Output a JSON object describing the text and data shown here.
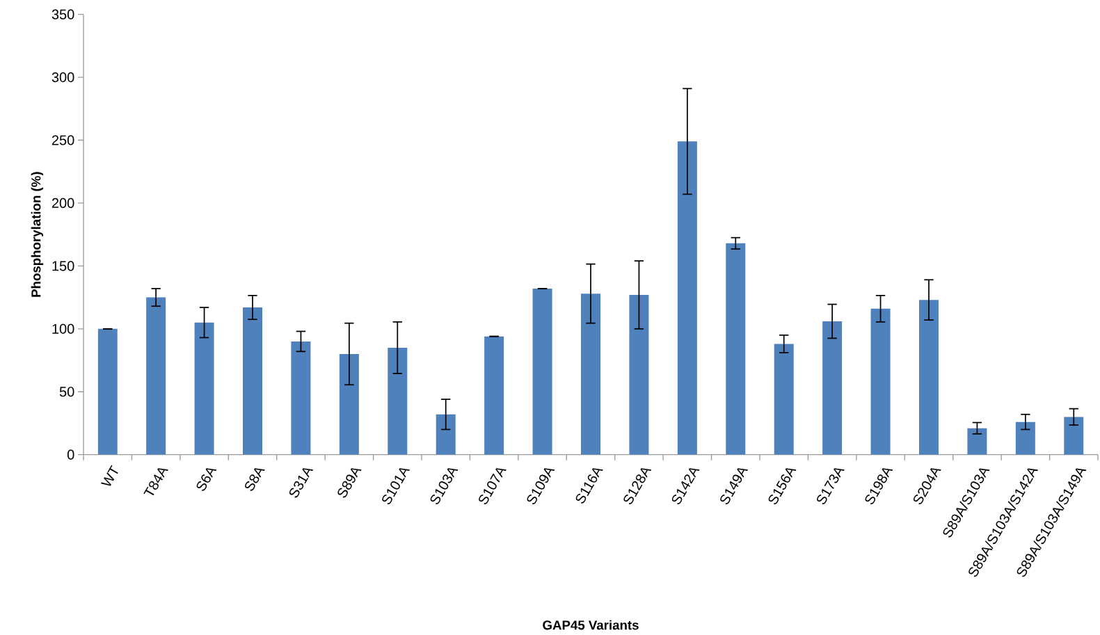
{
  "chart_data": {
    "type": "bar",
    "xlabel": "GAP45 Variants",
    "ylabel": "Phosphorylation (%)",
    "categories": [
      "WT",
      "T84A",
      "S6A",
      "S8A",
      "S31A",
      "S89A",
      "S101A",
      "S103A",
      "S107A",
      "S109A",
      "S116A",
      "S128A",
      "S142A",
      "S149A",
      "S156A",
      "S173A",
      "S198A",
      "S204A",
      "S89A/S103A",
      "S89A/S103A/S142A",
      "S89A/S103A/S149A"
    ],
    "values": [
      100,
      125,
      105,
      117,
      90,
      80,
      85,
      32,
      94,
      132,
      128,
      127,
      249,
      168,
      88,
      106,
      116,
      123,
      21,
      26,
      30
    ],
    "errors": [
      0,
      7,
      12,
      9.5,
      8,
      24.5,
      20.5,
      12,
      0,
      0,
      23.5,
      27,
      42,
      4.5,
      7,
      13.5,
      10.5,
      16,
      4.5,
      6,
      6.5
    ],
    "color": "#4f81bd",
    "ylim": [
      0,
      350
    ],
    "yticks": [
      0,
      50,
      100,
      150,
      200,
      250,
      300,
      350
    ],
    "grid": false
  }
}
